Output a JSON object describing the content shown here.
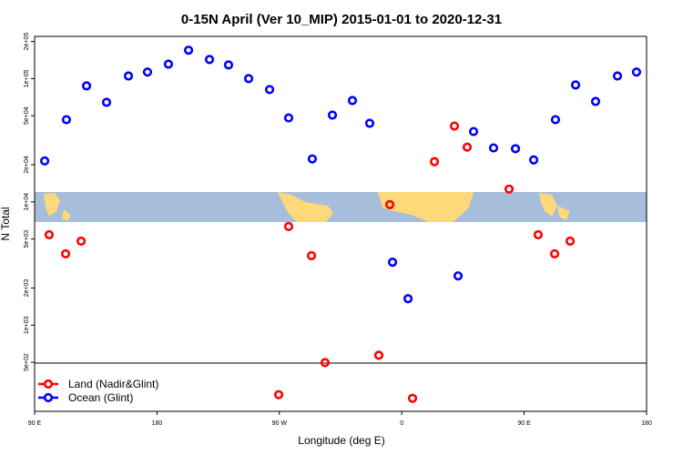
{
  "chart_data": {
    "type": "scatter",
    "title": "0-15N April (Ver 10_MIP)   2015-01-01 to 2020-12-31",
    "x_label": "Longitude (deg E)",
    "y_label": "N Total",
    "log_y": true,
    "xlim": [
      90,
      540
    ],
    "ylim": [
      200,
      220000
    ],
    "xticks": [
      {
        "value": 90,
        "label": "90 E"
      },
      {
        "value": 180,
        "label": "180"
      },
      {
        "value": 270,
        "label": "90 W"
      },
      {
        "value": 360,
        "label": "0"
      },
      {
        "value": 450,
        "label": "90 E"
      },
      {
        "value": 540,
        "label": "180"
      }
    ],
    "yticks": [
      {
        "value": 200000,
        "label": "2e+05"
      },
      {
        "value": 100000,
        "label": "1e+05"
      },
      {
        "value": 50000,
        "label": "5e+04"
      },
      {
        "value": 20000,
        "label": "2e+04"
      },
      {
        "value": 10000,
        "label": "1e+04"
      },
      {
        "value": 5000,
        "label": "5e+03"
      },
      {
        "value": 2000,
        "label": "2e+03"
      },
      {
        "value": 1000,
        "label": "1e+03"
      },
      {
        "value": 500,
        "label": "5e+02"
      }
    ],
    "series": [
      {
        "name": "Land (Nadir&Glint)",
        "color": "#ff0000",
        "x": [
          100.7,
          112.8,
          124.2,
          269.5,
          276.8,
          293.6,
          303.6,
          343.1,
          351.2,
          367.9,
          384.0,
          398.7,
          408.1,
          438.9,
          460.3,
          472.4,
          483.8
        ],
        "values": [
          5410,
          3790,
          4800,
          273,
          6310,
          3660,
          497,
          570,
          9500,
          255,
          21200,
          41200,
          27800,
          12700,
          5410,
          3790,
          4800
        ]
      },
      {
        "name": "Ocean (Glint)",
        "color": "#0000ff",
        "x": [
          97.4,
          113.4,
          128.2,
          142.9,
          159.0,
          173.0,
          188.4,
          203.2,
          218.6,
          232.6,
          247.4,
          262.8,
          276.8,
          294.2,
          309.0,
          323.7,
          336.4,
          353.2,
          364.6,
          401.4,
          412.8,
          427.5,
          443.6,
          457.0,
          473.0,
          487.8,
          502.5,
          518.6,
          532.6
        ],
        "values": [
          21500,
          46400,
          87300,
          64200,
          105000,
          113000,
          131000,
          170000,
          143000,
          129000,
          100000,
          81500,
          48000,
          22300,
          50600,
          66400,
          43400,
          3240,
          1640,
          2510,
          37200,
          27400,
          27000,
          21900,
          46400,
          88800,
          65300,
          105000,
          113000
        ]
      }
    ]
  }
}
